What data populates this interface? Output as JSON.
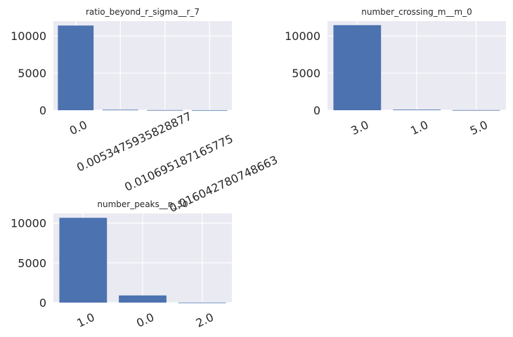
{
  "chart_data": [
    {
      "type": "bar",
      "title": "ratio_beyond_r_sigma__r_7",
      "categories": [
        "0.0",
        "0.0053475935828877",
        "0.0106951871657754",
        "0.016042780748663"
      ],
      "category_labels": [
        "0.0",
        "0.0053475935828877",
        "0.010695187165775",
        "0.016042780748663"
      ],
      "values": [
        11400,
        70,
        20,
        10
      ],
      "ylim": [
        0,
        12000
      ],
      "yticks": [
        0,
        5000,
        10000
      ],
      "ytick_labels": [
        "0",
        "5000",
        "10000"
      ],
      "grid": true,
      "bar_color": "#4c72b0"
    },
    {
      "type": "bar",
      "title": "number_crossing_m__m_0",
      "categories": [
        "3.0",
        "1.0",
        "5.0"
      ],
      "category_labels": [
        "3.0",
        "1.0",
        "5.0"
      ],
      "values": [
        11450,
        80,
        20
      ],
      "ylim": [
        0,
        12000
      ],
      "yticks": [
        0,
        5000,
        10000
      ],
      "ytick_labels": [
        "0",
        "5000",
        "10000"
      ],
      "grid": true,
      "bar_color": "#4c72b0"
    },
    {
      "type": "bar",
      "title": "number_peaks__n_50",
      "categories": [
        "1.0",
        "0.0",
        "2.0"
      ],
      "category_labels": [
        "1.0",
        "0.0",
        "2.0"
      ],
      "values": [
        10650,
        900,
        10
      ],
      "ylim": [
        0,
        11200
      ],
      "yticks": [
        0,
        5000,
        10000
      ],
      "ytick_labels": [
        "0",
        "5000",
        "10000"
      ],
      "grid": true,
      "bar_color": "#4c72b0"
    }
  ]
}
